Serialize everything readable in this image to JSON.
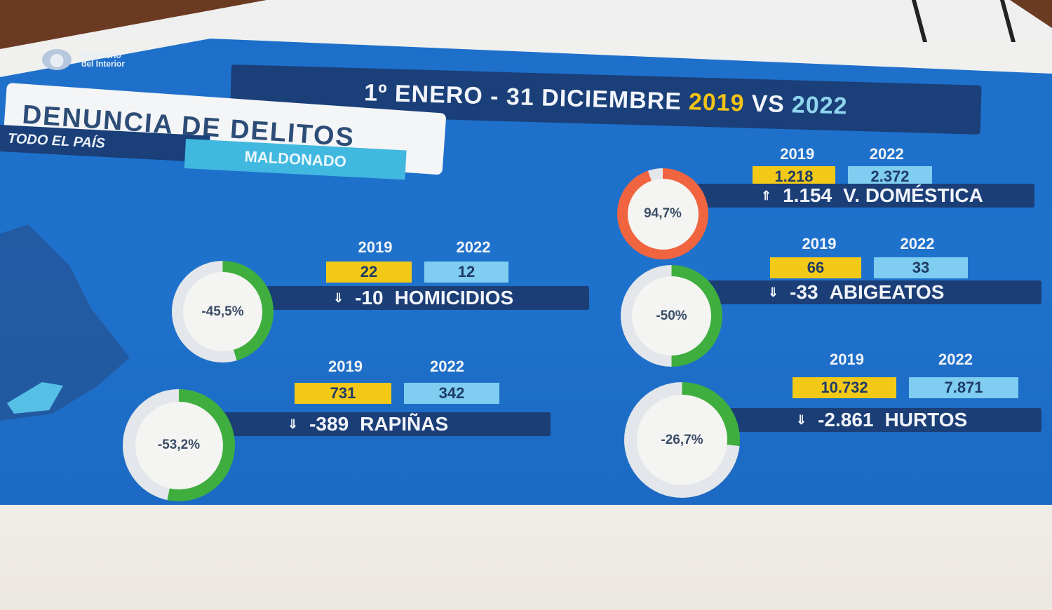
{
  "header": {
    "ministry_line1": "Ministerio",
    "ministry_line2": "del Interior",
    "title_main": "1º ENERO - 31 DICIEMBRE",
    "title_year1": "2019",
    "title_vs": "VS",
    "title_year2": "2022"
  },
  "section": {
    "title": "DENUNCIA DE DELITOS",
    "tab_country": "TODO EL PAÍS",
    "tab_selected": "MALDONADO"
  },
  "colors": {
    "year2019": "#f3c918",
    "year2022": "#7fcdf0",
    "decrease_ring": "#3fae3f",
    "increase_ring": "#f0643f"
  },
  "metrics": [
    {
      "key": "homicidios",
      "year1": "2019",
      "year2": "2022",
      "v1": "22",
      "v2": "12",
      "change": "-10",
      "trend": "down",
      "label": "HOMICIDIOS",
      "pct": "-45,5%",
      "ring_fraction": 0.455
    },
    {
      "key": "rapinas",
      "year1": "2019",
      "year2": "2022",
      "v1": "731",
      "v2": "342",
      "change": "-389",
      "trend": "down",
      "label": "RAPIÑAS",
      "pct": "-53,2%",
      "ring_fraction": 0.532
    },
    {
      "key": "vdomestica",
      "year1": "2019",
      "year2": "2022",
      "v1": "1.218",
      "v2": "2.372",
      "change": "1.154",
      "trend": "up",
      "label": "V. DOMÉSTICA",
      "pct": "94,7%",
      "ring_fraction": 0.947
    },
    {
      "key": "abigeatos",
      "year1": "2019",
      "year2": "2022",
      "v1": "66",
      "v2": "33",
      "change": "-33",
      "trend": "down",
      "label": "ABIGEATOS",
      "pct": "-50%",
      "ring_fraction": 0.5
    },
    {
      "key": "hurtos",
      "year1": "2019",
      "year2": "2022",
      "v1": "10.732",
      "v2": "7.871",
      "change": "-2.861",
      "trend": "down",
      "label": "HURTOS",
      "pct": "-26,7%",
      "ring_fraction": 0.267
    }
  ]
}
